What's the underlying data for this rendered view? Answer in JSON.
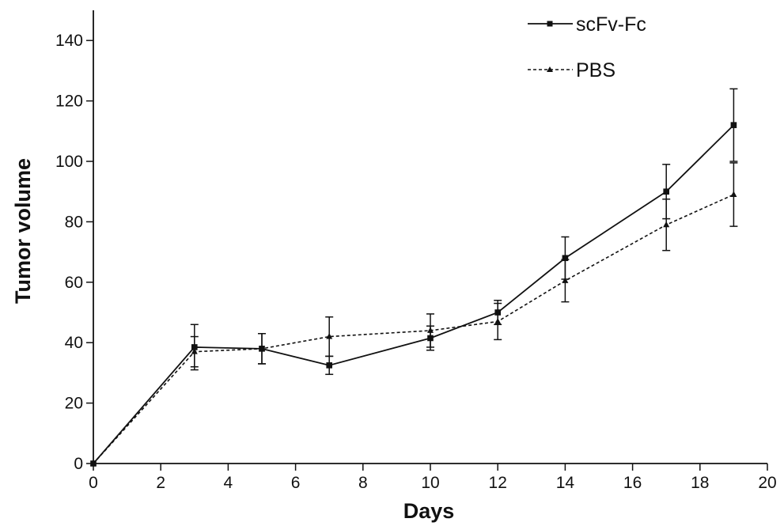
{
  "chart_data": {
    "type": "line",
    "title": "",
    "xlabel": "Days",
    "ylabel": "Tumor volume",
    "xlim": [
      0,
      20
    ],
    "ylim": [
      0,
      150
    ],
    "x_ticks": [
      0,
      2,
      4,
      6,
      8,
      10,
      12,
      14,
      16,
      18,
      20
    ],
    "y_ticks": [
      0,
      20,
      40,
      60,
      80,
      100,
      120,
      140
    ],
    "grid": false,
    "legend_position": "top-right",
    "series": [
      {
        "name": "scFv-Fc",
        "line_style": "solid",
        "marker": "square",
        "color": "#111111",
        "x": [
          0,
          3,
          5,
          7,
          10,
          12,
          14,
          17,
          19
        ],
        "y": [
          0,
          38.5,
          38,
          32.5,
          41.5,
          50,
          68,
          90,
          112
        ],
        "error": [
          0,
          7.5,
          5,
          3,
          4,
          4,
          7,
          9,
          12
        ]
      },
      {
        "name": "PBS",
        "line_style": "dashed",
        "marker": "triangle",
        "color": "#111111",
        "x": [
          0,
          3,
          5,
          7,
          10,
          12,
          14,
          17,
          19
        ],
        "y": [
          0,
          37,
          38,
          42,
          44,
          47,
          60.5,
          79,
          89
        ],
        "error": [
          0,
          5,
          5,
          6.5,
          5.5,
          6,
          7,
          8.5,
          10.5
        ]
      }
    ]
  }
}
